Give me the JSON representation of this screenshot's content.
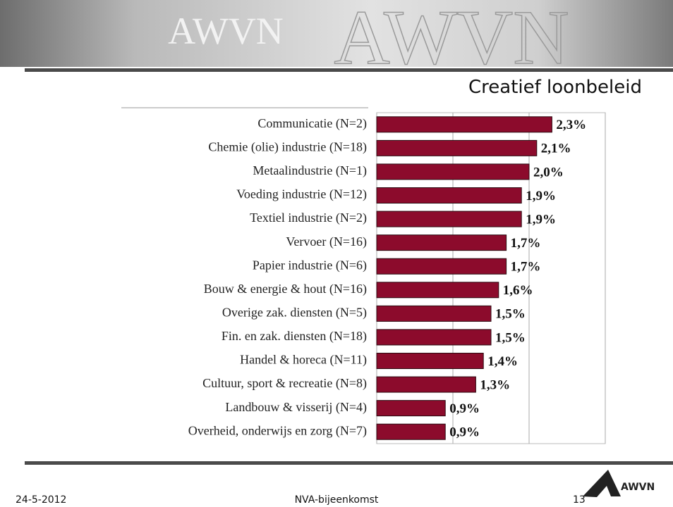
{
  "header": {
    "logo_text": "AWVN",
    "banner_text": "AWVN"
  },
  "slide": {
    "title": "Creatief loonbeleid",
    "date": "24-5-2012",
    "event": "NVA-bijeenkomst",
    "page": "13",
    "footer_logo": "AWVN"
  },
  "chart_data": {
    "type": "hbar",
    "categories": [
      "Communicatie (N=2)",
      "Chemie (olie) industrie (N=18)",
      "Metaalindustrie (N=1)",
      "Voeding industrie (N=12)",
      "Textiel industrie (N=2)",
      "Vervoer (N=16)",
      "Papier  industrie (N=6)",
      "Bouw & energie & hout (N=16)",
      "Overige zak. diensten (N=5)",
      "Fin. en zak. diensten (N=18)",
      "Handel & horeca (N=11)",
      "Cultuur, sport & recreatie (N=8)",
      "Landbouw & visserij (N=4)",
      "Overheid, onderwijs en zorg (N=7)"
    ],
    "values": [
      2.3,
      2.1,
      2.0,
      1.9,
      1.9,
      1.7,
      1.7,
      1.6,
      1.5,
      1.5,
      1.4,
      1.3,
      0.9,
      0.9
    ],
    "value_labels": [
      "2,3%",
      "2,1%",
      "2,0%",
      "1,9%",
      "1,9%",
      "1,7%",
      "1,7%",
      "1,6%",
      "1,5%",
      "1,5%",
      "1,4%",
      "1,3%",
      "0,9%",
      "0,9%"
    ],
    "color": "#8c0b2c",
    "xlim": [
      0,
      3
    ],
    "xticks": [
      0,
      1,
      2,
      3
    ],
    "grid": true
  }
}
